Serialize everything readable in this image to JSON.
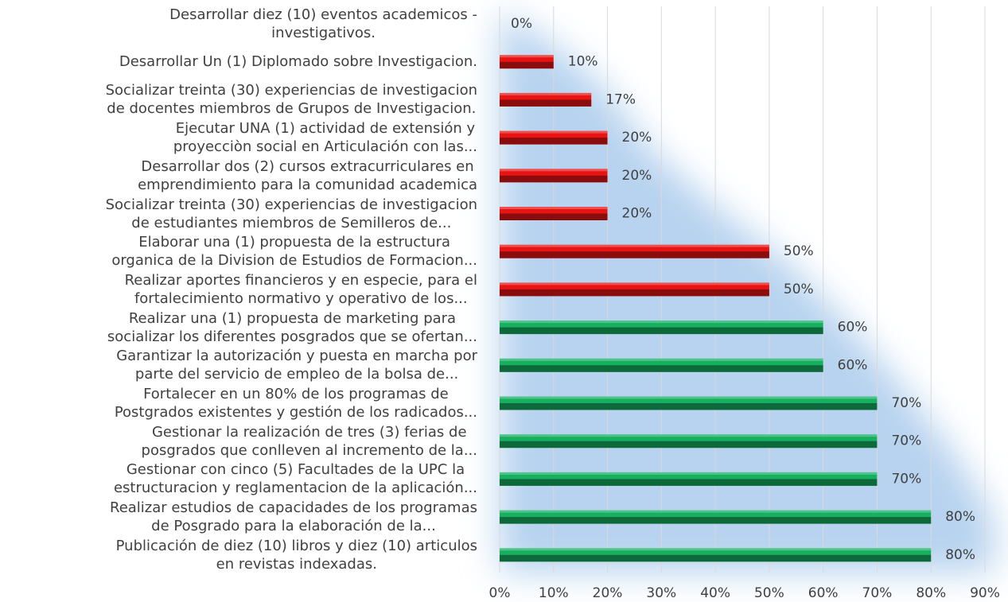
{
  "chart_data": {
    "type": "hbar",
    "categories": [
      "Desarrollar  diez (10)  eventos academicos -\ninvestigativos.",
      "Desarrollar  Un (1) Diplomado sobre  Investigacion.",
      "Socializar  treinta (30) experiencias de investigacion\nde docentes miembros de Grupos de Investigacion.",
      "Ejecutar UNA (1) actividad  de extensión y\nproyecciòn social  en Articulación  con  las...",
      "Desarrollar dos (2) cursos extracurriculares en\nemprendimiento para la comunidad academica",
      "Socializar treinta (30) experiencias de investigacion\nde estudiantes miembros de Semilleros de...",
      "Elaborar una (1) propuesta de la estructura\norganica de la Division de Estudios de Formacion...",
      "Realizar aportes financieros y en especie, para el\nfortalecimiento normativo y operativo de los...",
      "Realizar una (1) propuesta de marketing para\nsocializar los diferentes posgrados que se ofertan...",
      "Garantizar la autorización y puesta en marcha por\nparte del servicio de empleo de la bolsa de...",
      "Fortalecer en un 80%  de los programas de\nPostgrados existentes y gestión de los radicados...",
      "Gestionar la realización de tres (3) ferias de\nposgrados que conlleven al incremento de la...",
      "Gestionar con cinco (5) Facultades de la UPC la\nestructuracion y reglamentacion de la aplicación...",
      "Realizar estudios de capacidades de los programas\nde Posgrado para la elaboración de la...",
      "Publicación de diez (10) libros y diez (10) articulos\nen revistas indexadas."
    ],
    "values": [
      0,
      10,
      17,
      20,
      20,
      20,
      50,
      50,
      60,
      60,
      70,
      70,
      70,
      80,
      80
    ],
    "value_labels": [
      "0%",
      "10%",
      "17%",
      "20%",
      "20%",
      "20%",
      "50%",
      "50%",
      "60%",
      "60%",
      "70%",
      "70%",
      "70%",
      "80%",
      "80%"
    ],
    "colors": [
      "#e81414",
      "#e81414",
      "#e81414",
      "#e81414",
      "#e81414",
      "#e81414",
      "#e81414",
      "#e81414",
      "#16b060",
      "#16b060",
      "#16b060",
      "#16b060",
      "#16b060",
      "#16b060",
      "#16b060"
    ],
    "xlim": [
      0,
      90
    ],
    "xticks": [
      {
        "value": 0,
        "label": "0%"
      },
      {
        "value": 10,
        "label": "10%"
      },
      {
        "value": 20,
        "label": "20%"
      },
      {
        "value": 30,
        "label": "30%"
      },
      {
        "value": 40,
        "label": "40%"
      },
      {
        "value": 50,
        "label": "50%"
      },
      {
        "value": 60,
        "label": "60%"
      },
      {
        "value": 70,
        "label": "70%"
      },
      {
        "value": 80,
        "label": "80%"
      },
      {
        "value": 90,
        "label": "90%"
      }
    ],
    "grid": true
  }
}
